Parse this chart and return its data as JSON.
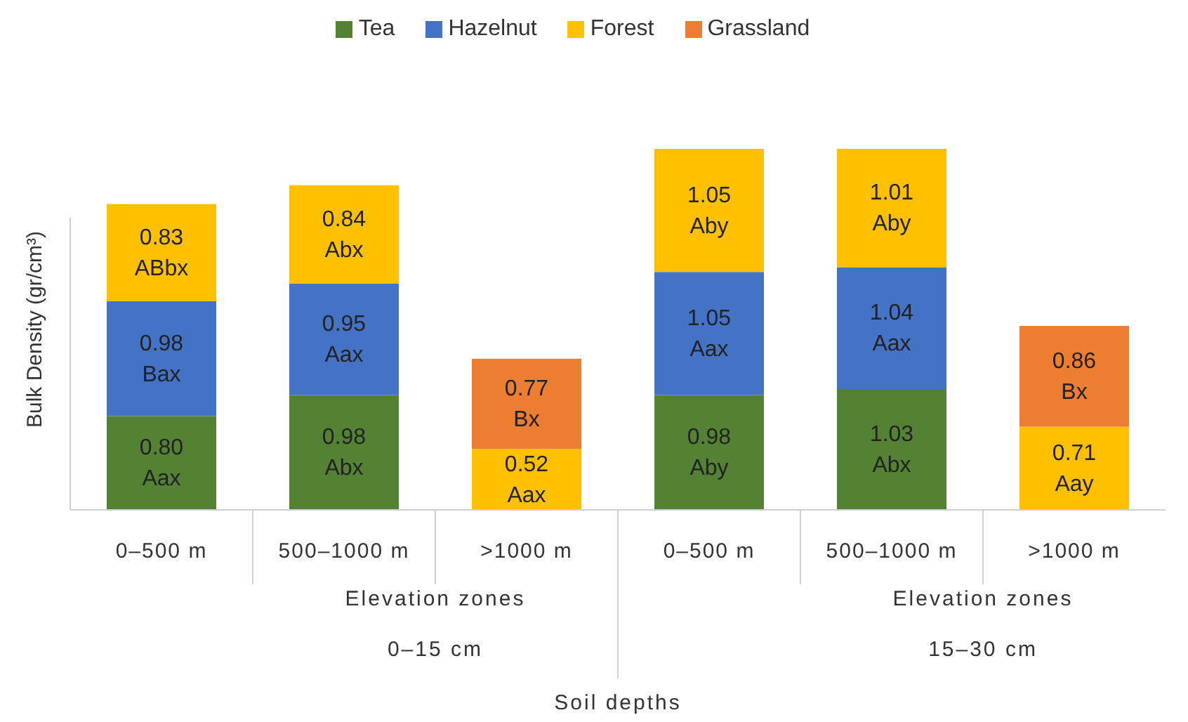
{
  "chart_data": {
    "type": "bar",
    "stacked": true,
    "ylabel": "Bulk Density (gr/cm³)",
    "legend": "top",
    "tick_labels": "x",
    "categories": [
      "0–500 m",
      "500–1000 m",
      ">1000 m",
      "0–500 m",
      "500–1000 m",
      ">1000 m"
    ],
    "annotations": [
      "Elevation zones",
      "0–15 cm",
      "Elevation zones",
      "15–30 cm",
      "Soil depths"
    ],
    "series": [
      {
        "name": "Tea",
        "color": "#548235",
        "values": [
          0.8,
          0.98,
          null,
          0.98,
          1.03,
          null
        ],
        "value_labels": [
          "0.80 Aax",
          "0.98 Abx",
          null,
          "0.98 Aby",
          "1.03 Abx",
          null
        ]
      },
      {
        "name": "Hazelnut",
        "color": "#4472c4",
        "values": [
          0.98,
          0.95,
          null,
          1.05,
          1.04,
          null
        ],
        "value_labels": [
          "0.98 Bax",
          "0.95 Aax",
          null,
          "1.05 Aax",
          "1.04 Aax",
          null
        ]
      },
      {
        "name": "Forest",
        "color": "#ffc000",
        "values": [
          0.83,
          0.84,
          0.52,
          1.05,
          1.01,
          0.71
        ],
        "value_labels": [
          "0.83 ABbx",
          "0.84 Abx",
          "0.52 Aax",
          "1.05 Aby",
          "1.01 Aby",
          "0.71 Aay"
        ]
      },
      {
        "name": "Grassland",
        "color": "#ed7d31",
        "values": [
          null,
          null,
          0.77,
          null,
          null,
          0.86
        ],
        "value_labels": [
          null,
          null,
          "0.77 Bx",
          null,
          null,
          "0.86 Bx"
        ]
      }
    ]
  }
}
